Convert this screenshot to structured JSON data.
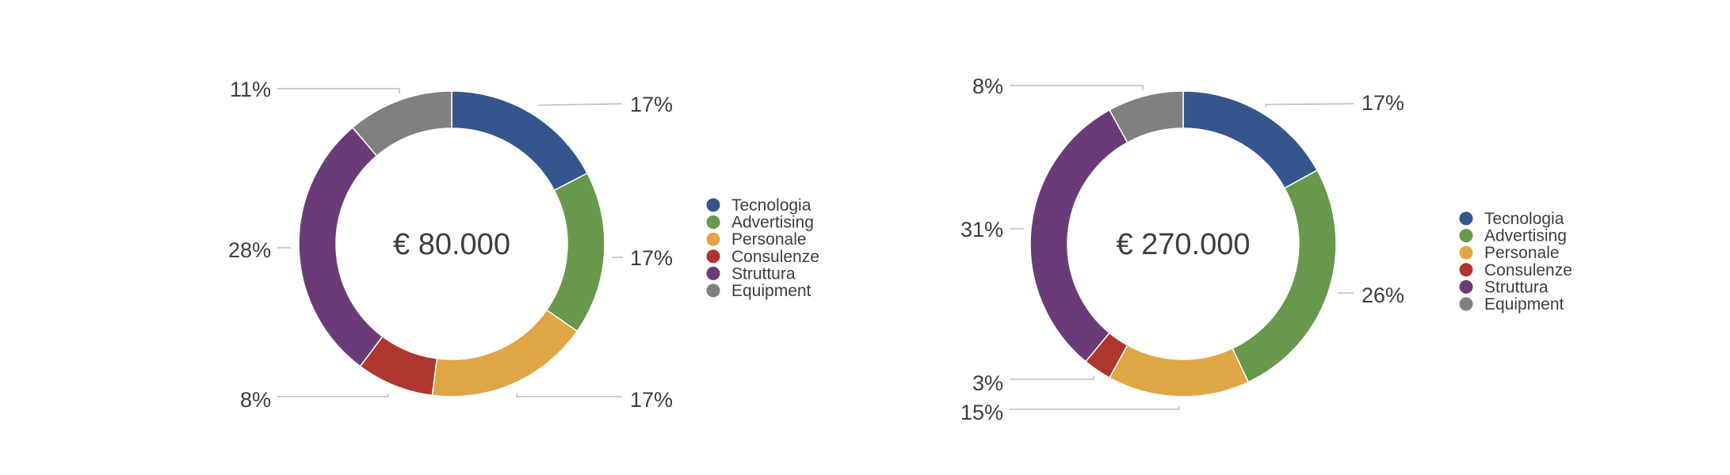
{
  "chart_data": [
    {
      "type": "donut",
      "center_label": "€ 80.000",
      "categories": [
        "Tecnologia",
        "Advertising",
        "Personale",
        "Consulenze",
        "Struttura",
        "Equipment"
      ],
      "values": [
        17,
        17,
        17,
        8,
        28,
        11
      ],
      "value_labels": [
        "17%",
        "17%",
        "17%",
        "8%",
        "28%",
        "11%"
      ],
      "colors": [
        "#36558c",
        "#67984b",
        "#e0a645",
        "#ad362e",
        "#6b3b78",
        "#7f807f"
      ],
      "legend": [
        "Tecnologia",
        "Advertising",
        "Personale",
        "Consulenze",
        "Struttura",
        "Equipment"
      ],
      "legend_placement": "right"
    },
    {
      "type": "donut",
      "center_label": "€ 270.000",
      "categories": [
        "Tecnologia",
        "Advertising",
        "Personale",
        "Consulenze",
        "Struttura",
        "Equipment"
      ],
      "values": [
        17,
        26,
        15,
        3,
        31,
        8
      ],
      "value_labels": [
        "17%",
        "26%",
        "15%",
        "3%",
        "31%",
        "8%"
      ],
      "colors": [
        "#36558c",
        "#67984b",
        "#e0a645",
        "#ad362e",
        "#6b3b78",
        "#7f807f"
      ],
      "legend": [
        "Tecnologia",
        "Advertising",
        "Personale",
        "Consulenze",
        "Struttura",
        "Equipment"
      ],
      "legend_placement": "right"
    }
  ]
}
